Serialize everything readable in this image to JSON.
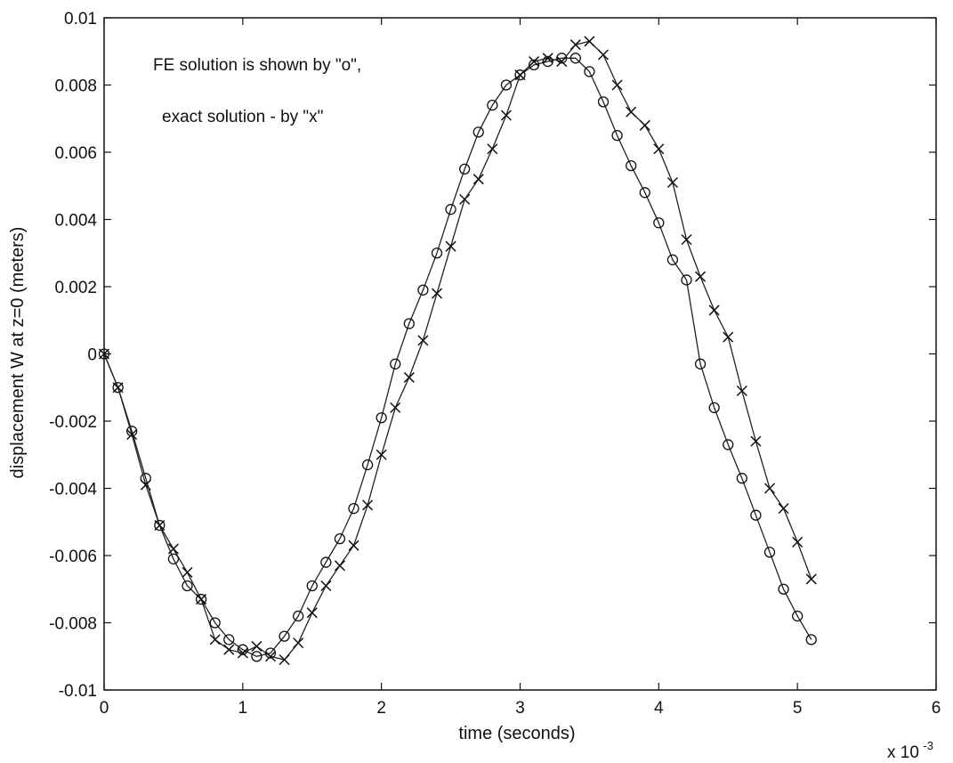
{
  "chart_data": {
    "type": "line",
    "title": "",
    "xlabel": "time (seconds)",
    "ylabel": "displacement W at z=0 (meters)",
    "x_scale_note": {
      "base": "x 10",
      "exponent": "-3"
    },
    "xlim": [
      0,
      6
    ],
    "ylim": [
      -0.01,
      0.01
    ],
    "xticks": [
      0,
      1,
      2,
      3,
      4,
      5,
      6
    ],
    "xtick_labels": [
      "0",
      "1",
      "2",
      "3",
      "4",
      "5",
      "6"
    ],
    "yticks": [
      -0.01,
      -0.008,
      -0.006,
      -0.004,
      -0.002,
      0,
      0.002,
      0.004,
      0.006,
      0.008,
      0.01
    ],
    "ytick_labels": [
      "-0.01",
      "-0.008",
      "-0.006",
      "-0.004",
      "-0.002",
      "0",
      "0.002",
      "0.004",
      "0.006",
      "0.008",
      "0.01"
    ],
    "grid": false,
    "annotations": [
      "FE solution is shown by \"o\",",
      "exact solution - by \"x\""
    ],
    "series": [
      {
        "marker": "o",
        "x": [
          0,
          0.1,
          0.2,
          0.3,
          0.4,
          0.5,
          0.6,
          0.7,
          0.8,
          0.9,
          1.0,
          1.1,
          1.2,
          1.3,
          1.4,
          1.5,
          1.6,
          1.7,
          1.8,
          1.9,
          2.0,
          2.1,
          2.2,
          2.3,
          2.4,
          2.5,
          2.6,
          2.7,
          2.8,
          2.9,
          3.0,
          3.1,
          3.2,
          3.3,
          3.4,
          3.5,
          3.6,
          3.7,
          3.8,
          3.9,
          4.0,
          4.1,
          4.2,
          4.3,
          4.4,
          4.5,
          4.6,
          4.7,
          4.8,
          4.9,
          5.0,
          5.1
        ],
        "y": [
          0,
          -0.001,
          -0.0023,
          -0.0037,
          -0.0051,
          -0.0061,
          -0.0069,
          -0.0073,
          -0.008,
          -0.0085,
          -0.0088,
          -0.009,
          -0.0089,
          -0.0084,
          -0.0078,
          -0.0069,
          -0.0062,
          -0.0055,
          -0.0046,
          -0.0033,
          -0.0019,
          -0.0003,
          0.0009,
          0.0019,
          0.003,
          0.0043,
          0.0055,
          0.0066,
          0.0074,
          0.008,
          0.0083,
          0.0086,
          0.0087,
          0.0088,
          0.0088,
          0.0084,
          0.0075,
          0.0065,
          0.0056,
          0.0048,
          0.0039,
          0.0028,
          0.0022,
          -0.0003,
          -0.0016,
          -0.0027,
          -0.0037,
          -0.0048,
          -0.0059,
          -0.007,
          -0.0078,
          -0.0085
        ]
      },
      {
        "marker": "x",
        "x": [
          0,
          0.1,
          0.2,
          0.3,
          0.4,
          0.5,
          0.6,
          0.7,
          0.8,
          0.9,
          1.0,
          1.1,
          1.2,
          1.3,
          1.4,
          1.5,
          1.6,
          1.7,
          1.8,
          1.9,
          2.0,
          2.1,
          2.2,
          2.3,
          2.4,
          2.5,
          2.6,
          2.7,
          2.8,
          2.9,
          3.0,
          3.1,
          3.2,
          3.3,
          3.4,
          3.5,
          3.6,
          3.7,
          3.8,
          3.9,
          4.0,
          4.1,
          4.2,
          4.3,
          4.4,
          4.5,
          4.6,
          4.7,
          4.8,
          4.9,
          5.0,
          5.1
        ],
        "y": [
          0,
          -0.001,
          -0.0024,
          -0.0039,
          -0.0051,
          -0.0058,
          -0.0065,
          -0.0073,
          -0.0085,
          -0.0088,
          -0.0089,
          -0.0087,
          -0.009,
          -0.0091,
          -0.0086,
          -0.0077,
          -0.0069,
          -0.0063,
          -0.0057,
          -0.0045,
          -0.003,
          -0.0016,
          -0.0007,
          0.0004,
          0.0018,
          0.0032,
          0.0046,
          0.0052,
          0.0061,
          0.0071,
          0.0083,
          0.0087,
          0.0088,
          0.0087,
          0.0092,
          0.0093,
          0.0089,
          0.008,
          0.0072,
          0.0068,
          0.0061,
          0.0051,
          0.0034,
          0.0023,
          0.0013,
          0.0005,
          -0.0011,
          -0.0026,
          -0.004,
          -0.0046,
          -0.0056,
          -0.0067
        ]
      }
    ]
  }
}
